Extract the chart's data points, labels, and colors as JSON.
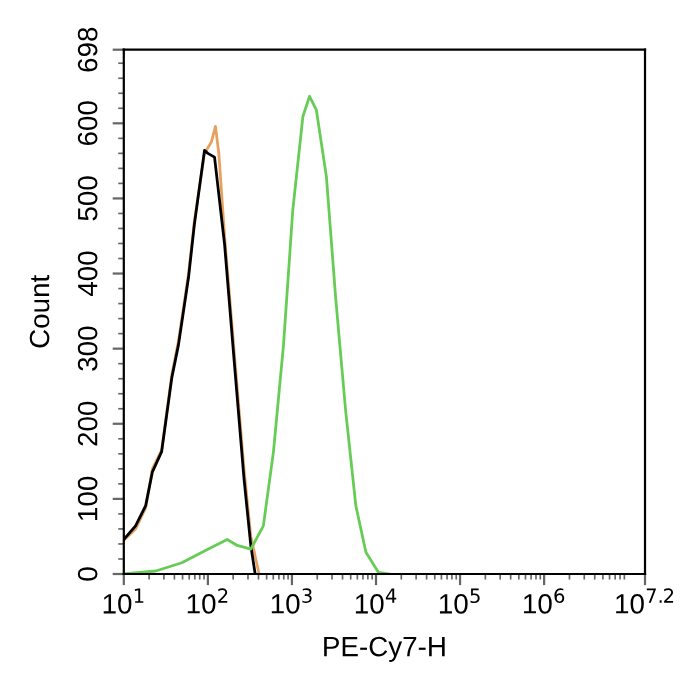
{
  "chart_data": {
    "type": "line",
    "xlabel": "PE-Cy7-H",
    "ylabel": "Count",
    "log": "x",
    "grid": false,
    "marker": "none",
    "line_style": "solid",
    "xlim": [
      10,
      15848932
    ],
    "xticks": [
      {
        "value": 10,
        "label": "10$^{1}$"
      },
      {
        "value": 100,
        "label": "10$^{2}$"
      },
      {
        "value": 1000,
        "label": "10$^{3}$"
      },
      {
        "value": 10000,
        "label": "10$^{4}$"
      },
      {
        "value": 100000,
        "label": "10$^{5}$"
      },
      {
        "value": 1000000,
        "label": "10$^{6}$"
      },
      {
        "value": 15848932,
        "label": "10$^{7.2}$"
      }
    ],
    "ylim": [
      0,
      698
    ],
    "yticks": [
      0,
      100,
      200,
      300,
      400,
      500,
      600,
      698
    ],
    "series": [
      {
        "color": "#e8a060",
        "x": [
          10,
          13.8,
          18.2,
          21.9,
          28.2,
          37.2,
          44.7,
          58.9,
          69.2,
          91.2,
          110,
          123,
          135,
          158,
          204,
          269,
          324,
          407
        ],
        "values": [
          45,
          60,
          88,
          140,
          165,
          265,
          310,
          400,
          470,
          560,
          575,
          596,
          560,
          450,
          300,
          140,
          50,
          0
        ]
      },
      {
        "color": "#000000",
        "x": [
          10,
          13.8,
          18.2,
          21.9,
          28.2,
          37.2,
          44.7,
          58.9,
          69.2,
          91.2,
          100,
          120,
          158,
          204,
          269,
          324,
          363
        ],
        "values": [
          46,
          64,
          91,
          136,
          163,
          261,
          305,
          395,
          466,
          564,
          560,
          555,
          439,
          288,
          127,
          38,
          2
        ]
      },
      {
        "color": "#66cc55",
        "x": [
          10,
          24,
          49,
          100,
          170,
          224,
          324,
          457,
          603,
          794,
          1023,
          1349,
          1622,
          1950,
          2570,
          3311,
          4365,
          5754,
          7586,
          10715,
          14125
        ],
        "values": [
          0,
          4,
          15,
          33,
          46,
          38,
          33,
          64,
          163,
          305,
          484,
          609,
          636,
          618,
          529,
          368,
          216,
          91,
          29,
          2,
          0
        ]
      }
    ]
  }
}
